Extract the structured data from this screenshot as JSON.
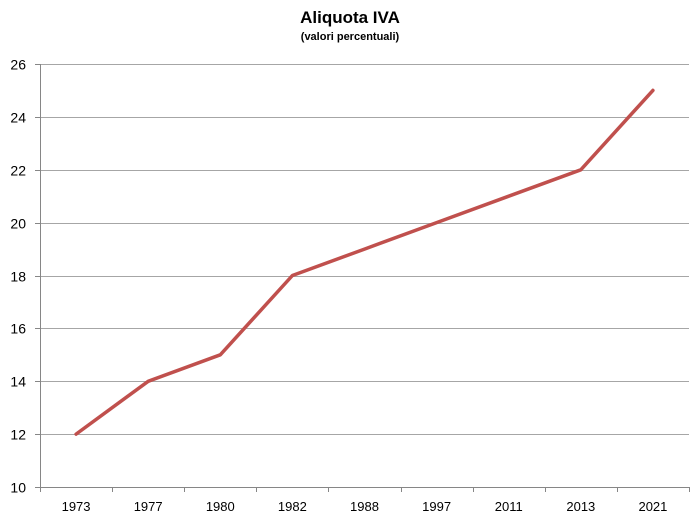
{
  "chart_data": {
    "type": "line",
    "title": "Aliquota IVA",
    "subtitle": "(valori percentuali)",
    "xlabel": "",
    "ylabel": "",
    "categories": [
      "1973",
      "1977",
      "1980",
      "1982",
      "1988",
      "1997",
      "2011",
      "2013",
      "2021"
    ],
    "series": [
      {
        "name": "Aliquota IVA",
        "values": [
          12,
          14,
          15,
          18,
          19,
          20,
          21,
          22,
          25
        ],
        "color": "#c0504d"
      }
    ],
    "ylim": [
      10,
      26
    ],
    "yticks": [
      10,
      12,
      14,
      16,
      18,
      20,
      22,
      24,
      26
    ],
    "grid": true,
    "legend": "none"
  },
  "colors": {
    "line": "#c0504d",
    "grid": "#a6a6a6",
    "axis": "#868686"
  }
}
